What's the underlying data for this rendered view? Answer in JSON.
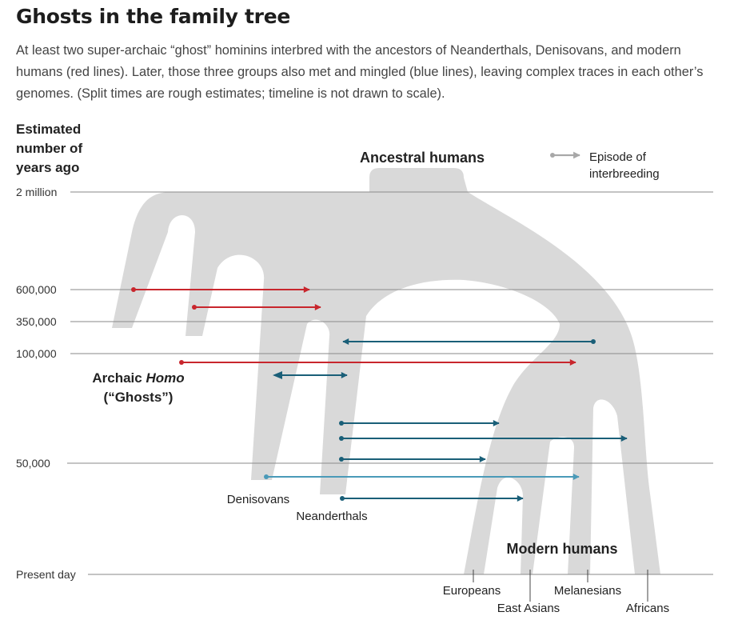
{
  "headline": "Ghosts in the family tree",
  "intro": "At least two super-archaic “ghost” hominins interbred with the ancestors of Neanderthals, Denisovans, and modern humans (red lines). Later, those three groups also met and mingled (blue lines), leaving complex traces in each other’s genomes. (Split times are rough estimates; timeline is not drawn to scale).",
  "axis": {
    "title_lines": [
      "Estimated",
      "number of",
      "years ago"
    ],
    "ticks": [
      "2 million",
      "600,000",
      "350,000",
      "100,000",
      "50,000",
      "Present day"
    ]
  },
  "legend": {
    "line1": "Episode of",
    "line2": "interbreeding"
  },
  "labels": {
    "ancestral": "Ancestral humans",
    "archaic_prefix": "Archaic ",
    "archaic_italic": "Homo",
    "ghosts": "(“Ghosts”)",
    "denisovans": "Denisovans",
    "neanderthals": "Neanderthals",
    "modern": "Modern humans",
    "europeans": "Europeans",
    "east_asians": "East Asians",
    "melanesians": "Melanesians",
    "africans": "Africans"
  },
  "colors": {
    "red": "#c8262d",
    "blue": "#1a5f78",
    "lightblue": "#4a9ab8",
    "gray": "#a8a8a8",
    "trunk": "#d9d9d9"
  }
}
